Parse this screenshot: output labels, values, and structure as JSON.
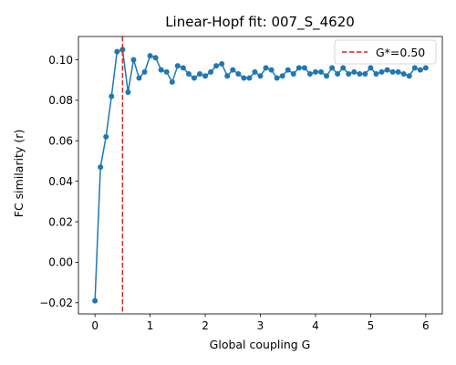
{
  "chart_data": {
    "type": "line",
    "title": "Linear-Hopf fit: 007_S_4620",
    "xlabel": "Global coupling G",
    "ylabel": "FC similarity (r)",
    "xlim": [
      -0.3,
      6.3
    ],
    "ylim": [
      -0.0255,
      0.1115
    ],
    "xticks": [
      0,
      1,
      2,
      3,
      4,
      5,
      6
    ],
    "xtick_labels": [
      "0",
      "1",
      "2",
      "3",
      "4",
      "5",
      "6"
    ],
    "yticks": [
      -0.02,
      0.0,
      0.02,
      0.04,
      0.06,
      0.08,
      0.1
    ],
    "ytick_labels": [
      "−0.02",
      "0.00",
      "0.02",
      "0.04",
      "0.06",
      "0.08",
      "0.10"
    ],
    "grid": false,
    "legend": {
      "position": "top-right",
      "entries": [
        {
          "label": "G*=0.50",
          "style": "dashed",
          "color": "#d62728"
        }
      ]
    },
    "vline": {
      "x": 0.5,
      "label": "G*=0.50",
      "color": "#d62728"
    },
    "series": [
      {
        "color": "#1f77b4",
        "x": [
          0.0,
          0.1,
          0.2,
          0.3,
          0.4,
          0.5,
          0.6,
          0.7,
          0.8,
          0.9,
          1.0,
          1.1,
          1.2,
          1.3,
          1.4,
          1.5,
          1.6,
          1.7,
          1.8,
          1.9,
          2.0,
          2.1,
          2.2,
          2.3,
          2.4,
          2.5,
          2.6,
          2.7,
          2.8,
          2.9,
          3.0,
          3.1,
          3.2,
          3.3,
          3.4,
          3.5,
          3.6,
          3.7,
          3.8,
          3.9,
          4.0,
          4.1,
          4.2,
          4.3,
          4.4,
          4.5,
          4.6,
          4.7,
          4.8,
          4.9,
          5.0,
          5.1,
          5.2,
          5.3,
          5.4,
          5.5,
          5.6,
          5.7,
          5.8,
          5.9,
          6.0
        ],
        "values": [
          -0.019,
          0.047,
          0.062,
          0.082,
          0.104,
          0.105,
          0.084,
          0.1,
          0.091,
          0.094,
          0.102,
          0.101,
          0.095,
          0.094,
          0.089,
          0.097,
          0.096,
          0.093,
          0.091,
          0.093,
          0.092,
          0.094,
          0.097,
          0.098,
          0.092,
          0.095,
          0.093,
          0.091,
          0.091,
          0.094,
          0.092,
          0.096,
          0.095,
          0.091,
          0.092,
          0.095,
          0.093,
          0.096,
          0.096,
          0.093,
          0.094,
          0.094,
          0.092,
          0.096,
          0.093,
          0.096,
          0.093,
          0.094,
          0.093,
          0.093,
          0.096,
          0.093,
          0.094,
          0.095,
          0.094,
          0.094,
          0.093,
          0.092,
          0.096,
          0.095,
          0.096
        ]
      }
    ]
  }
}
